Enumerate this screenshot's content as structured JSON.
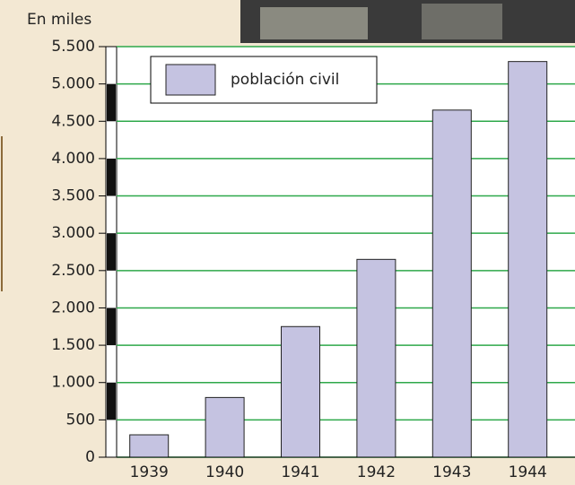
{
  "chart_data": {
    "type": "bar",
    "y_axis_label": "En miles",
    "categories": [
      "1939",
      "1940",
      "1941",
      "1942",
      "1943",
      "1944"
    ],
    "series": [
      {
        "name": "población civil",
        "color": "#c5c3e1",
        "values": [
          300,
          800,
          1750,
          2650,
          4650,
          5300
        ]
      }
    ],
    "ylim": [
      0,
      5500
    ],
    "yticks": [
      0,
      500,
      {
        "value": 1000,
        "label": "1.000"
      },
      {
        "value": 1500,
        "label": "1.500"
      },
      {
        "value": 2000,
        "label": "2.000"
      },
      {
        "value": 2500,
        "label": "2.500"
      },
      {
        "value": 3000,
        "label": "3.000"
      },
      {
        "value": 3500,
        "label": "3.500"
      },
      {
        "value": 4000,
        "label": "4.000"
      },
      {
        "value": 4500,
        "label": "4.500"
      },
      {
        "value": 5000,
        "label": "5.000"
      },
      {
        "value": 5500,
        "label": "5.500"
      }
    ],
    "grid": true,
    "grid_color": "#2ea84a",
    "legend": "top-left"
  }
}
